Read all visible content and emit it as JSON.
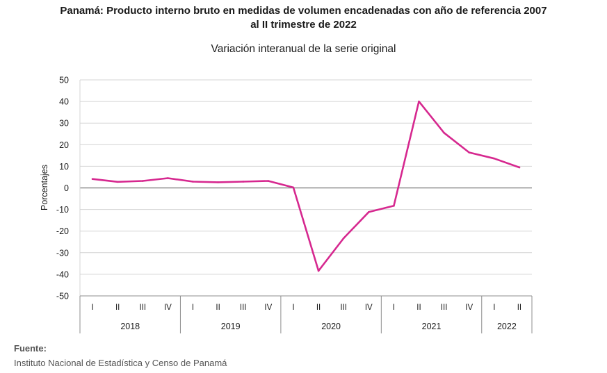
{
  "chart_data": {
    "type": "line",
    "title_line1": "Panamá: Producto interno bruto en medidas  de volumen encadenadas con año de referencia 2007",
    "title_line2": "al II trimestre de 2022",
    "subtitle": "Variación interanual de la serie original",
    "ylabel": "Porcentajes",
    "ylim": [
      -50,
      50
    ],
    "yticks": [
      "50",
      "40",
      "30",
      "20",
      "10",
      "0",
      "-10",
      "-20",
      "-30",
      "-40",
      "-50"
    ],
    "ytick_values": [
      50,
      40,
      30,
      20,
      10,
      0,
      -10,
      -20,
      -30,
      -40,
      -50
    ],
    "quarters": [
      "I",
      "II",
      "III",
      "IV",
      "I",
      "II",
      "III",
      "IV",
      "I",
      "II",
      "III",
      "IV",
      "I",
      "II",
      "III",
      "IV",
      "I",
      "II"
    ],
    "years": [
      {
        "label": "2018",
        "quarters": 4
      },
      {
        "label": "2019",
        "quarters": 4
      },
      {
        "label": "2020",
        "quarters": 4
      },
      {
        "label": "2021",
        "quarters": 4
      },
      {
        "label": "2022",
        "quarters": 2
      }
    ],
    "values": [
      4.1,
      2.8,
      3.2,
      4.5,
      2.9,
      2.6,
      2.9,
      3.2,
      0.2,
      -38.4,
      -23.3,
      -11.2,
      -8.3,
      40.0,
      25.5,
      16.4,
      13.6,
      9.5
    ],
    "grid": true,
    "line_color": "#d6288f"
  },
  "source": {
    "label": "Fuente:",
    "text": "Instituto Nacional de Estadística y Censo de Panamá"
  }
}
